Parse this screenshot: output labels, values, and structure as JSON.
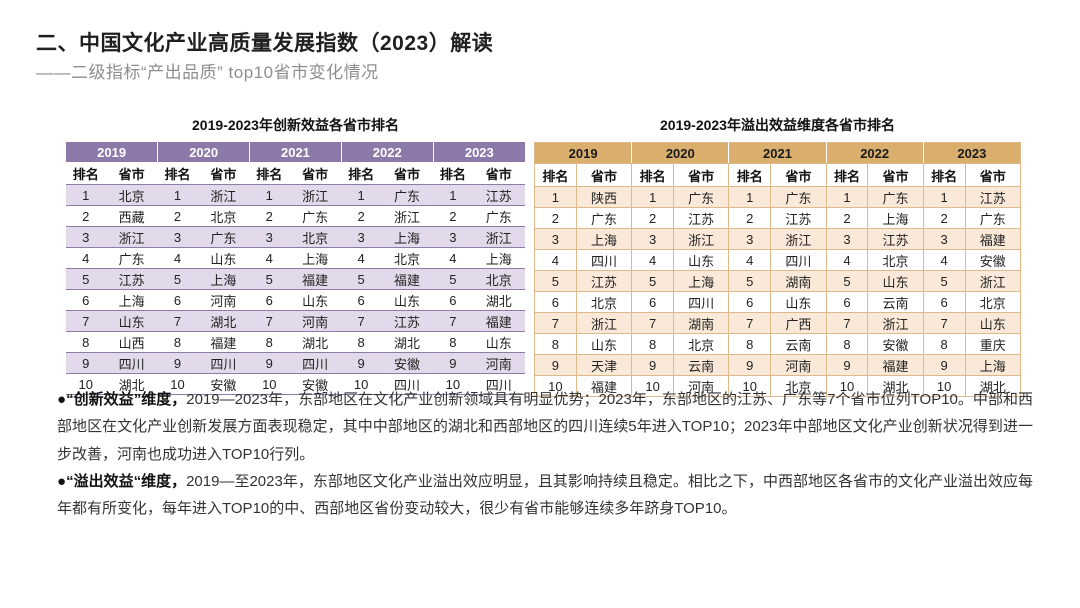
{
  "header": {
    "title": "二、中国文化产业高质量发展指数（2023）解读",
    "subtitle": "——二级指标“产出品质” top10省市变化情况"
  },
  "innovation_table": {
    "title": "2019-2023年创新效益各省市排名",
    "column_headers": [
      "排名",
      "省市"
    ],
    "ranks": [
      "1",
      "2",
      "3",
      "4",
      "5",
      "6",
      "7",
      "8",
      "9",
      "10"
    ],
    "colors": {
      "header_bg": "#8C79A9",
      "header_text": "#FFFFFF",
      "stripe": "#E2DAEA",
      "line": "#8E7BA6"
    },
    "years": [
      {
        "label": "2019",
        "provinces": [
          "北京",
          "西藏",
          "浙江",
          "广东",
          "江苏",
          "上海",
          "山东",
          "山西",
          "四川",
          "湖北"
        ]
      },
      {
        "label": "2020",
        "provinces": [
          "浙江",
          "北京",
          "广东",
          "山东",
          "上海",
          "河南",
          "湖北",
          "福建",
          "四川",
          "安徽"
        ]
      },
      {
        "label": "2021",
        "provinces": [
          "浙江",
          "广东",
          "北京",
          "上海",
          "福建",
          "山东",
          "河南",
          "湖北",
          "四川",
          "安徽"
        ]
      },
      {
        "label": "2022",
        "provinces": [
          "广东",
          "浙江",
          "上海",
          "北京",
          "福建",
          "山东",
          "江苏",
          "湖北",
          "安徽",
          "四川"
        ]
      },
      {
        "label": "2023",
        "provinces": [
          "江苏",
          "广东",
          "浙江",
          "上海",
          "北京",
          "湖北",
          "福建",
          "山东",
          "河南",
          "四川"
        ]
      }
    ]
  },
  "spillover_table": {
    "title": "2019-2023年溢出效益维度各省市排名",
    "column_headers": [
      "排名",
      "省市"
    ],
    "ranks": [
      "1",
      "2",
      "3",
      "4",
      "5",
      "6",
      "7",
      "8",
      "9",
      "10"
    ],
    "colors": {
      "header_bg": "#DAAF6E",
      "header_text": "#1A1A1A",
      "stripe": "#FAE9D8",
      "line": "#DDB98B"
    },
    "years": [
      {
        "label": "2019",
        "provinces": [
          "陕西",
          "广东",
          "上海",
          "四川",
          "江苏",
          "北京",
          "浙江",
          "山东",
          "天津",
          "福建"
        ]
      },
      {
        "label": "2020",
        "provinces": [
          "广东",
          "江苏",
          "浙江",
          "山东",
          "上海",
          "四川",
          "湖南",
          "北京",
          "云南",
          "河南"
        ]
      },
      {
        "label": "2021",
        "provinces": [
          "广东",
          "江苏",
          "浙江",
          "四川",
          "湖南",
          "山东",
          "广西",
          "云南",
          "河南",
          "北京"
        ]
      },
      {
        "label": "2022",
        "provinces": [
          "广东",
          "上海",
          "江苏",
          "北京",
          "山东",
          "云南",
          "浙江",
          "安徽",
          "福建",
          "湖北"
        ]
      },
      {
        "label": "2023",
        "provinces": [
          "江苏",
          "广东",
          "福建",
          "安徽",
          "浙江",
          "北京",
          "山东",
          "重庆",
          "上海",
          "湖北"
        ]
      }
    ]
  },
  "notes": [
    {
      "lead": "●“创新效益”维度，",
      "body": "2019—2023年，东部地区在文化产业创新领域具有明显优势；2023年，东部地区的江苏、广东等7个省市位列TOP10。中部和西部地区在文化产业创新发展方面表现稳定，其中中部地区的湖北和西部地区的四川连续5年进入TOP10；2023年中部地区文化产业创新状况得到进一步改善，河南也成功进入TOP10行列。"
    },
    {
      "lead": "●“溢出效益“维度，",
      "body": "2019—至2023年，东部地区文化产业溢出效应明显，且其影响持续且稳定。相比之下，中西部地区各省市的文化产业溢出效应每年都有所变化，每年进入TOP10的中、西部地区省份变动较大，很少有省市能够连续多年跻身TOP10。"
    }
  ]
}
